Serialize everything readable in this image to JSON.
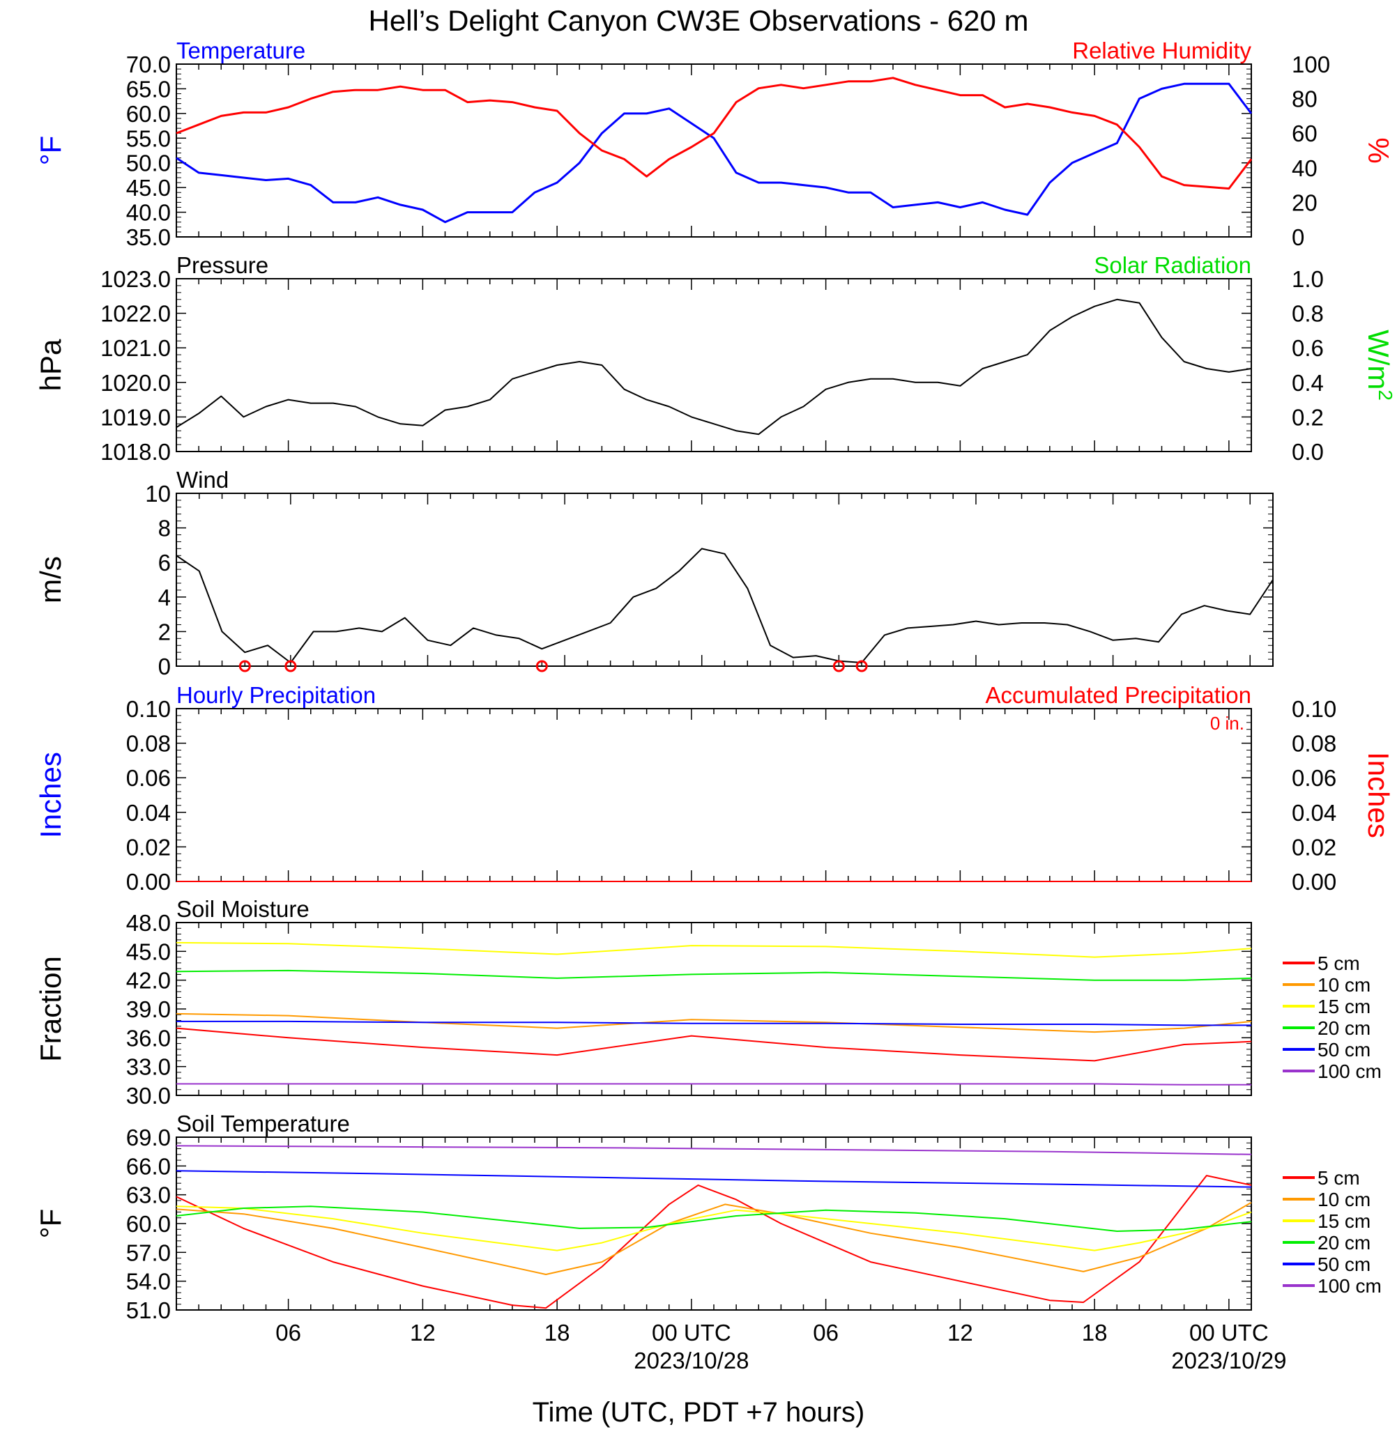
{
  "title": "Hell’s Delight Canyon CW3E Observations - 620 m",
  "x_axis": {
    "title": "Time (UTC, PDT +7 hours)",
    "ticks": [
      {
        "h": 6,
        "label": "06",
        "date": ""
      },
      {
        "h": 12,
        "label": "12",
        "date": ""
      },
      {
        "h": 18,
        "label": "18",
        "date": ""
      },
      {
        "h": 24,
        "label": "00 UTC",
        "date": "2023/10/28"
      },
      {
        "h": 30,
        "label": "06",
        "date": ""
      },
      {
        "h": 36,
        "label": "12",
        "date": ""
      },
      {
        "h": 42,
        "label": "18",
        "date": ""
      },
      {
        "h": 48,
        "label": "00 UTC",
        "date": "2023/10/29"
      }
    ],
    "range_hours": [
      1,
      49
    ]
  },
  "colors": {
    "temperature": "#0000ff",
    "rh": "#ff0000",
    "pressure": "#000000",
    "solar": "#00dd00",
    "wind": "#000000",
    "barbs": "#ff0000"
  },
  "chart_data": [
    {
      "id": "temp_rh",
      "type": "line",
      "title_left": "Temperature",
      "title_right": "Relative Humidity",
      "ylabel_left": "°F",
      "ylabel_right": "%",
      "ylim_left": [
        35,
        70
      ],
      "ylim_right": [
        0,
        100
      ],
      "yticks_left": [
        "70.0",
        "65.0",
        "60.0",
        "55.0",
        "50.0",
        "45.0",
        "40.0",
        "35.0"
      ],
      "yticks_right": [
        "100",
        "80",
        "60",
        "40",
        "20",
        "0"
      ],
      "series": [
        {
          "name": "Temperature",
          "axis": "left",
          "color": "#0000ff",
          "x": [
            1,
            2,
            3,
            4,
            5,
            6,
            7,
            8,
            9,
            10,
            11,
            12,
            13,
            14,
            15,
            16,
            17,
            18,
            19,
            20,
            21,
            22,
            23,
            24,
            25,
            26,
            27,
            28,
            29,
            30,
            31,
            32,
            33,
            34,
            35,
            36,
            37,
            38,
            39,
            40,
            41,
            42,
            43,
            44,
            45,
            46,
            47,
            48,
            49
          ],
          "y": [
            51,
            48,
            47.5,
            47,
            46.5,
            46.8,
            45.5,
            42,
            42,
            43,
            41.5,
            40.5,
            38,
            40,
            40,
            40,
            44,
            46,
            50,
            56,
            60,
            60,
            61,
            58,
            55,
            48,
            46,
            46,
            45.5,
            45,
            44,
            44,
            41,
            41.5,
            42,
            41,
            42,
            40.5,
            39.5,
            46,
            50,
            52,
            54,
            63,
            65,
            66,
            66,
            66,
            60
          ]
        },
        {
          "name": "Relative Humidity",
          "axis": "right",
          "color": "#ff0000",
          "x": [
            1,
            2,
            3,
            4,
            5,
            6,
            7,
            8,
            9,
            10,
            11,
            12,
            13,
            14,
            15,
            16,
            17,
            18,
            19,
            20,
            21,
            22,
            23,
            24,
            25,
            26,
            27,
            28,
            29,
            30,
            31,
            32,
            33,
            34,
            35,
            36,
            37,
            38,
            39,
            40,
            41,
            42,
            43,
            44,
            45,
            46,
            47,
            48,
            49
          ],
          "y": [
            60,
            65,
            70,
            72,
            72,
            75,
            80,
            84,
            85,
            85,
            87,
            85,
            85,
            78,
            79,
            78,
            75,
            73,
            60,
            50,
            45,
            35,
            45,
            52,
            60,
            78,
            86,
            88,
            86,
            88,
            90,
            90,
            92,
            88,
            85,
            82,
            82,
            75,
            77,
            75,
            72,
            70,
            65,
            52,
            35,
            30,
            29,
            28,
            45
          ]
        }
      ]
    },
    {
      "id": "pressure",
      "type": "line",
      "title_left": "Pressure",
      "title_right": "Solar Radiation",
      "ylabel_left": "hPa",
      "ylabel_right": "W/m",
      "ylabel_right_sup": "2",
      "ylim_left": [
        1018,
        1023
      ],
      "ylim_right": [
        0,
        1
      ],
      "yticks_left": [
        "1023.0",
        "1022.0",
        "1021.0",
        "1020.0",
        "1019.0",
        "1018.0"
      ],
      "yticks_right": [
        "1.0",
        "0.8",
        "0.6",
        "0.4",
        "0.2",
        "0.0"
      ],
      "series": [
        {
          "name": "Pressure",
          "axis": "left",
          "color": "#000000",
          "x": [
            1,
            2,
            3,
            4,
            5,
            6,
            7,
            8,
            9,
            10,
            11,
            12,
            13,
            14,
            15,
            16,
            17,
            18,
            19,
            20,
            21,
            22,
            23,
            24,
            25,
            26,
            27,
            28,
            29,
            30,
            31,
            32,
            33,
            34,
            35,
            36,
            37,
            38,
            39,
            40,
            41,
            42,
            43,
            44,
            45,
            46,
            47,
            48,
            49
          ],
          "y": [
            1018.7,
            1019.1,
            1019.6,
            1019,
            1019.3,
            1019.5,
            1019.4,
            1019.4,
            1019.3,
            1019,
            1018.8,
            1018.75,
            1019.2,
            1019.3,
            1019.5,
            1020.1,
            1020.3,
            1020.5,
            1020.6,
            1020.5,
            1019.8,
            1019.5,
            1019.3,
            1019,
            1018.8,
            1018.6,
            1018.5,
            1019,
            1019.3,
            1019.8,
            1020,
            1020.1,
            1020.1,
            1020,
            1020,
            1019.9,
            1020.4,
            1020.6,
            1020.8,
            1021.5,
            1021.9,
            1022.2,
            1022.4,
            1022.3,
            1021.3,
            1020.6,
            1020.4,
            1020.3,
            1020.4
          ]
        }
      ]
    },
    {
      "id": "wind",
      "type": "line",
      "title_left": "Wind",
      "ylabel_left": "m/s",
      "ylim_left": [
        0,
        10
      ],
      "yticks_left": [
        "10",
        "8",
        "6",
        "4",
        "2",
        "0"
      ],
      "calm_markers_hours": [
        4,
        6,
        17,
        30,
        31
      ],
      "series": [
        {
          "name": "Wind",
          "axis": "left",
          "color": "#000000",
          "x": [
            1,
            2,
            3,
            4,
            5,
            6,
            7,
            8,
            9,
            10,
            11,
            12,
            13,
            14,
            15,
            16,
            17,
            18,
            19,
            20,
            21,
            22,
            23,
            24,
            25,
            26,
            27,
            28,
            29,
            30,
            31,
            32,
            33,
            34,
            35,
            36,
            37,
            38,
            39,
            40,
            41,
            42,
            43,
            44,
            45,
            46,
            47,
            48,
            49
          ],
          "y": [
            6.4,
            5.5,
            2,
            0.8,
            1.2,
            0.2,
            2,
            2,
            2.2,
            2,
            2.8,
            1.5,
            1.2,
            2.2,
            1.8,
            1.6,
            1,
            1.5,
            2,
            2.5,
            4,
            4.5,
            5.5,
            6.8,
            6.5,
            4.5,
            1.2,
            0.5,
            0.6,
            0.3,
            0.2,
            1.8,
            2.2,
            2.3,
            2.4,
            2.6,
            2.4,
            2.5,
            2.5,
            2.4,
            2,
            1.5,
            1.6,
            1.4,
            3,
            3.5,
            3.2,
            3,
            5
          ]
        }
      ]
    },
    {
      "id": "precip",
      "type": "line",
      "title_left": "Hourly Precipitation",
      "title_right": "Accumulated Precipitation",
      "annotation": "0 in.",
      "ylabel_left": "Inches",
      "ylabel_right": "Inches",
      "ylim_left": [
        0,
        0.1
      ],
      "ylim_right": [
        0,
        0.1
      ],
      "yticks_left": [
        "0.10",
        "0.08",
        "0.06",
        "0.04",
        "0.02",
        "0.00"
      ],
      "yticks_right": [
        "0.10",
        "0.08",
        "0.06",
        "0.04",
        "0.02",
        "0.00"
      ],
      "series": [
        {
          "name": "Hourly Precipitation",
          "axis": "left",
          "color": "#0000ff",
          "x": [
            1,
            49
          ],
          "y": [
            0,
            0
          ]
        },
        {
          "name": "Accumulated Precipitation",
          "axis": "left",
          "color": "#ff0000",
          "x": [
            1,
            49
          ],
          "y": [
            0,
            0
          ]
        }
      ]
    },
    {
      "id": "soil_moisture",
      "type": "line",
      "title_left": "Soil Moisture",
      "ylabel_left": "Fraction",
      "ylim_left": [
        30,
        48
      ],
      "yticks_left": [
        "48.0",
        "45.0",
        "42.0",
        "39.0",
        "36.0",
        "33.0",
        "30.0"
      ],
      "legend_position": "right",
      "series": [
        {
          "name": "5 cm",
          "color": "#ff0000",
          "x": [
            1,
            6,
            12,
            18,
            24,
            30,
            36,
            42,
            46,
            49
          ],
          "y": [
            37,
            36,
            35,
            34.2,
            36.2,
            35,
            34.2,
            33.6,
            35.3,
            35.6
          ]
        },
        {
          "name": "10 cm",
          "color": "#ff9900",
          "x": [
            1,
            6,
            12,
            18,
            24,
            30,
            36,
            42,
            46,
            49
          ],
          "y": [
            38.5,
            38.3,
            37.6,
            37,
            37.9,
            37.6,
            37.1,
            36.6,
            37,
            37.7
          ]
        },
        {
          "name": "15 cm",
          "color": "#ffff00",
          "x": [
            1,
            6,
            12,
            18,
            24,
            30,
            36,
            42,
            46,
            49
          ],
          "y": [
            45.9,
            45.8,
            45.3,
            44.7,
            45.6,
            45.5,
            45,
            44.4,
            44.8,
            45.3
          ]
        },
        {
          "name": "20 cm",
          "color": "#00ee00",
          "x": [
            1,
            6,
            12,
            18,
            24,
            30,
            36,
            42,
            46,
            49
          ],
          "y": [
            42.9,
            43,
            42.7,
            42.2,
            42.6,
            42.8,
            42.4,
            42,
            42,
            42.2
          ]
        },
        {
          "name": "50 cm",
          "color": "#0000ff",
          "x": [
            1,
            6,
            12,
            18,
            24,
            30,
            36,
            42,
            46,
            49
          ],
          "y": [
            37.7,
            37.7,
            37.6,
            37.6,
            37.5,
            37.5,
            37.4,
            37.4,
            37.3,
            37.3
          ]
        },
        {
          "name": "100 cm",
          "color": "#9933cc",
          "x": [
            1,
            6,
            12,
            18,
            24,
            30,
            36,
            42,
            46,
            49
          ],
          "y": [
            31.2,
            31.2,
            31.2,
            31.2,
            31.2,
            31.2,
            31.2,
            31.2,
            31.1,
            31.1
          ]
        }
      ]
    },
    {
      "id": "soil_temperature",
      "type": "line",
      "title_left": "Soil Temperature",
      "ylabel_left": "°F",
      "ylim_left": [
        51,
        69
      ],
      "yticks_left": [
        "69.0",
        "66.0",
        "63.0",
        "60.0",
        "57.0",
        "54.0",
        "51.0"
      ],
      "legend_position": "right",
      "series": [
        {
          "name": "5 cm",
          "color": "#ff0000",
          "x": [
            1,
            4,
            8,
            12,
            16,
            17.5,
            20,
            23,
            24.3,
            26,
            28,
            32,
            36,
            40,
            41.5,
            44,
            47,
            49
          ],
          "y": [
            62.8,
            59.5,
            56,
            53.5,
            51.5,
            51.2,
            55.5,
            62,
            64,
            62.5,
            60,
            56,
            54,
            52,
            51.8,
            56,
            65,
            64
          ]
        },
        {
          "name": "10 cm",
          "color": "#ff9900",
          "x": [
            1,
            4,
            8,
            12,
            17.5,
            20,
            23,
            25.5,
            28,
            32,
            36,
            41.5,
            44,
            47,
            49
          ],
          "y": [
            61.5,
            61,
            59.5,
            57.5,
            54.7,
            56,
            60,
            62,
            61,
            59,
            57.5,
            55,
            56.5,
            59.5,
            62.2
          ]
        },
        {
          "name": "15 cm",
          "color": "#ffff00",
          "x": [
            1,
            4,
            8,
            12,
            18,
            20,
            23,
            26,
            28,
            32,
            36,
            42,
            44,
            47,
            49
          ],
          "y": [
            61.8,
            61.6,
            60.5,
            59,
            57.2,
            58,
            60,
            61.4,
            61,
            60,
            59,
            57.2,
            58,
            59.5,
            61.2
          ]
        },
        {
          "name": "20 cm",
          "color": "#00ee00",
          "x": [
            1,
            4,
            7,
            12,
            19,
            22,
            26,
            30,
            34,
            38,
            43,
            46,
            49
          ],
          "y": [
            60.8,
            61.6,
            61.8,
            61.2,
            59.5,
            59.6,
            60.8,
            61.4,
            61.1,
            60.5,
            59.2,
            59.4,
            60.2
          ]
        },
        {
          "name": "50 cm",
          "color": "#0000ff",
          "x": [
            1,
            10,
            20,
            30,
            40,
            49
          ],
          "y": [
            65.5,
            65.2,
            64.8,
            64.4,
            64.1,
            63.8
          ]
        },
        {
          "name": "100 cm",
          "color": "#9933cc",
          "x": [
            1,
            10,
            20,
            30,
            40,
            49
          ],
          "y": [
            68.1,
            68,
            67.9,
            67.7,
            67.5,
            67.2
          ]
        }
      ]
    }
  ]
}
